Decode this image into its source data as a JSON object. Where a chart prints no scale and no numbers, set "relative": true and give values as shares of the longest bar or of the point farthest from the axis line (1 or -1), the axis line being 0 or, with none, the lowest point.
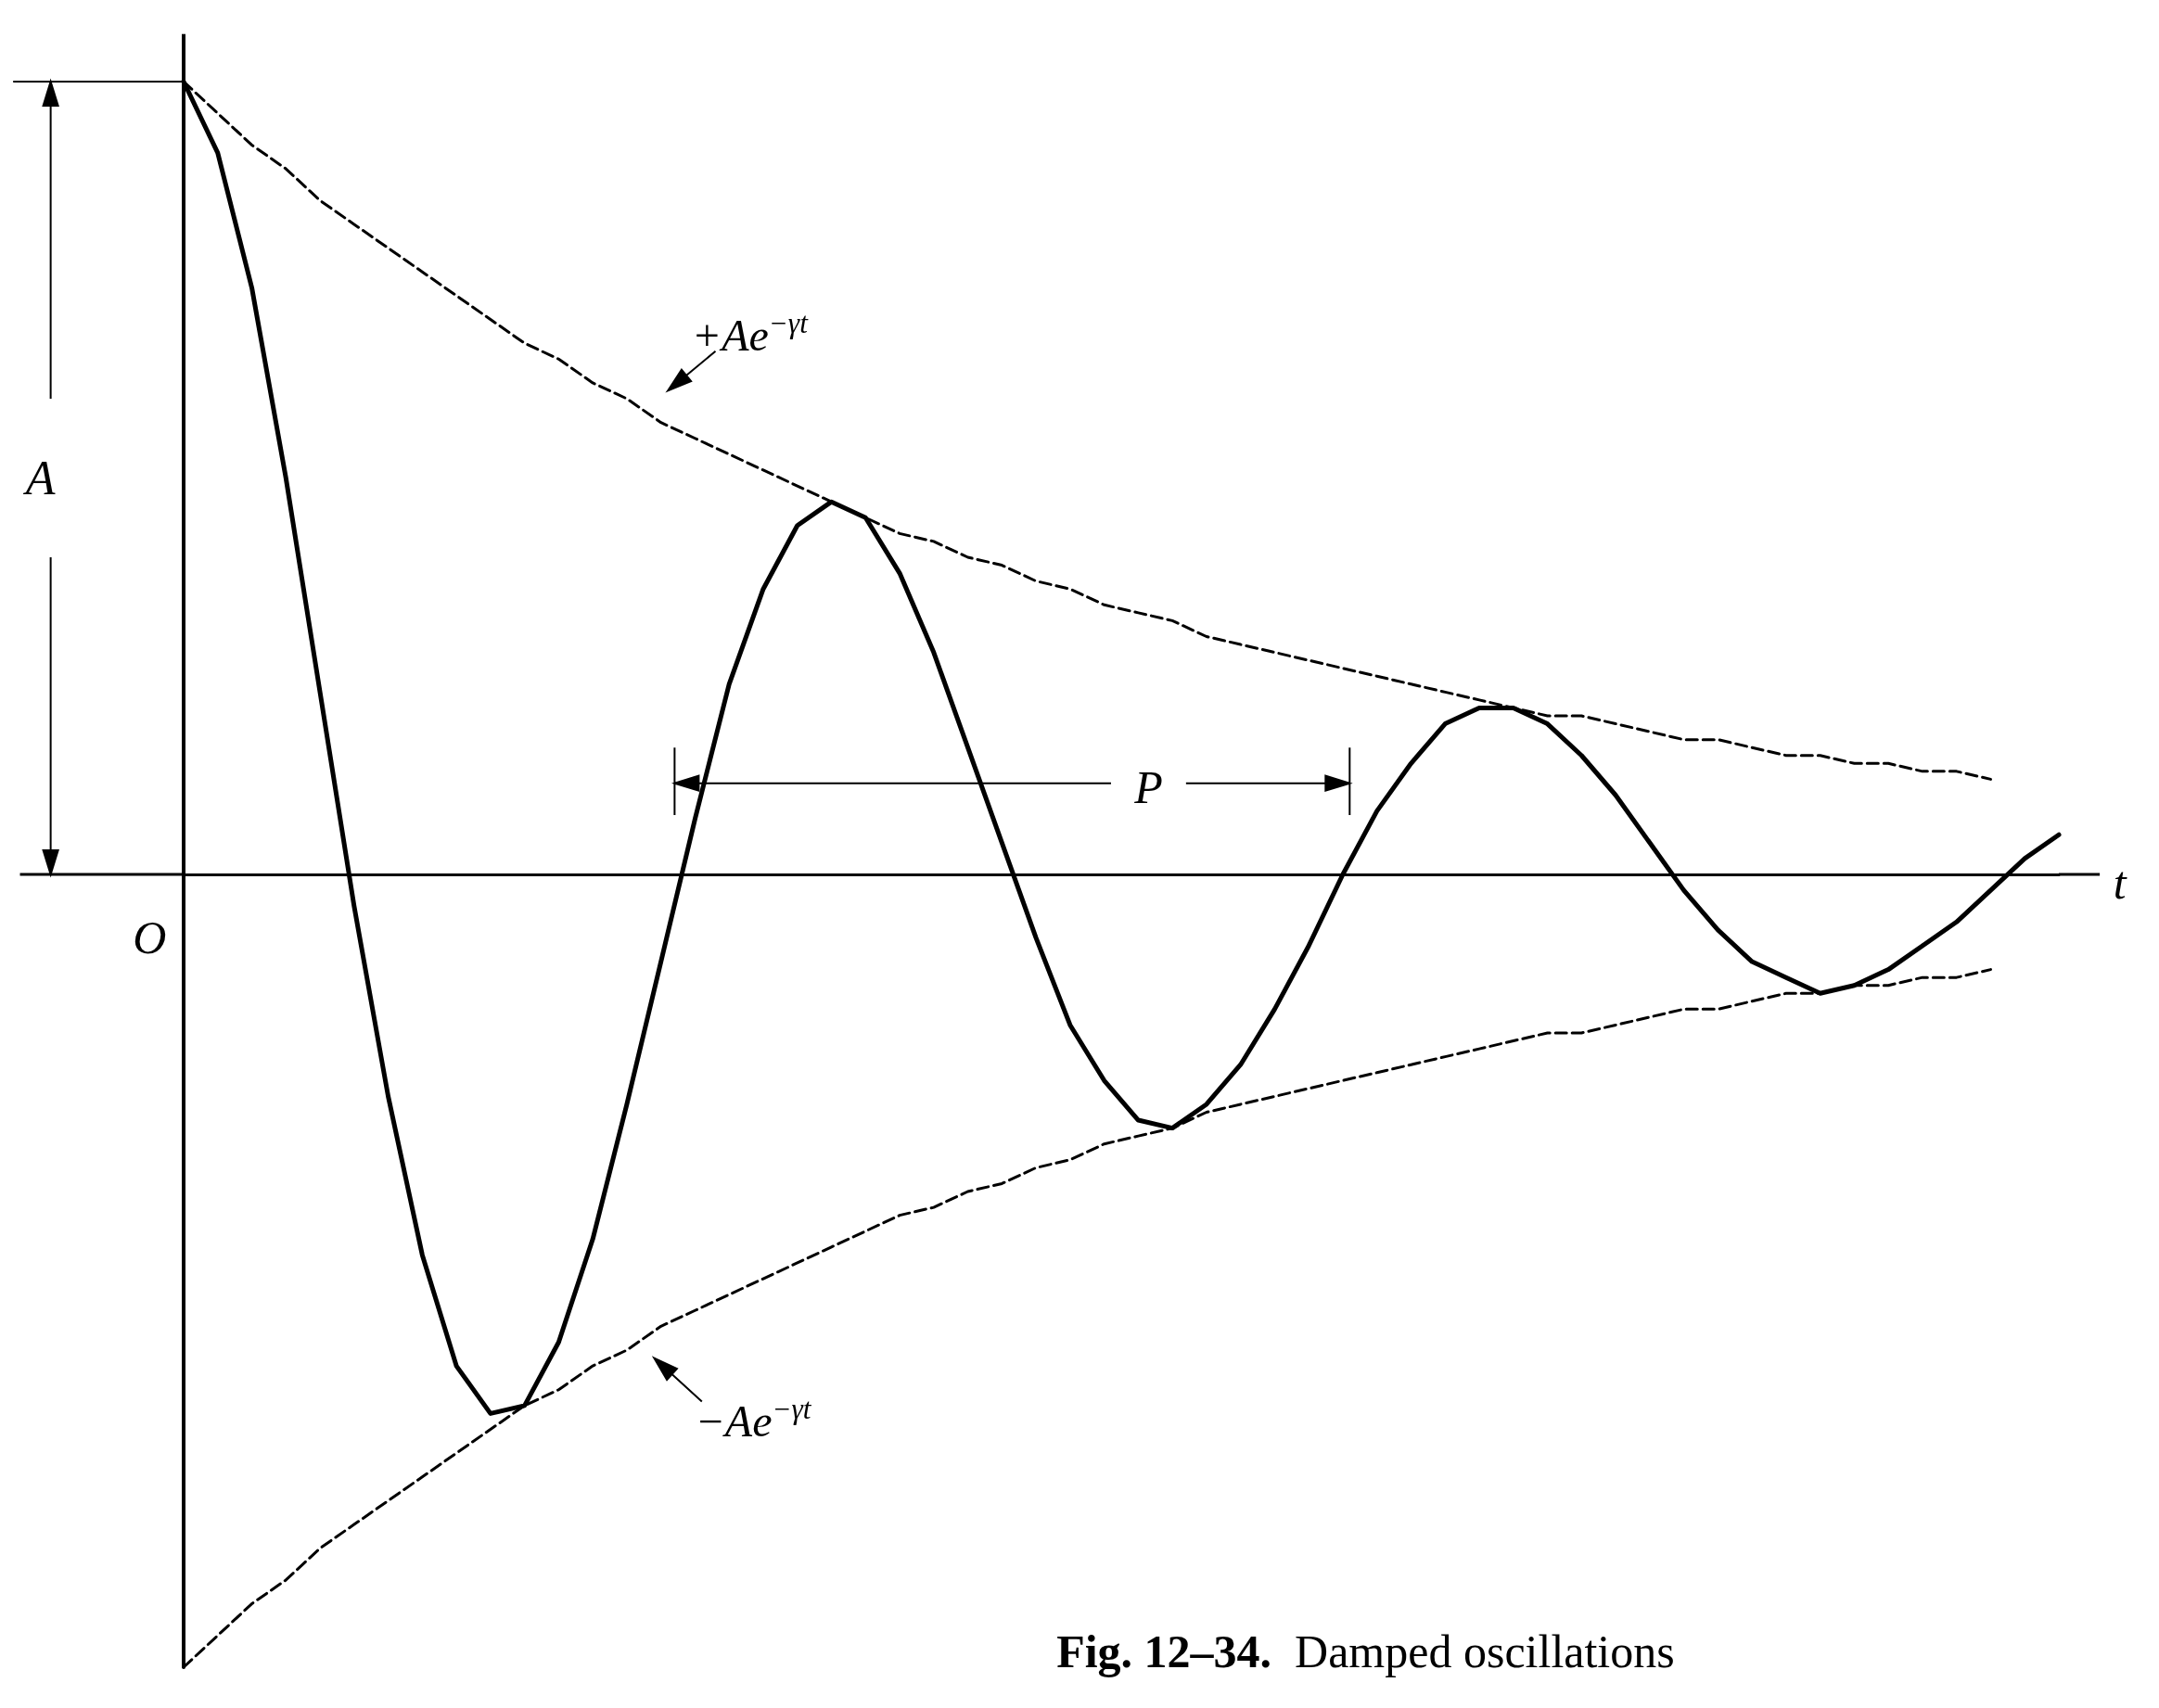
{
  "chart_data": {
    "type": "line",
    "relative": true,
    "categories": [
      null,
      null,
      null,
      null,
      null,
      null,
      null,
      null,
      null,
      null,
      null,
      null,
      null,
      null,
      null,
      null,
      null,
      null,
      null,
      null,
      null,
      null,
      null,
      null,
      null,
      null,
      null,
      null,
      null,
      null,
      null,
      null,
      null,
      null,
      null,
      null,
      null,
      null,
      null,
      null,
      null,
      null,
      null,
      null,
      null,
      null,
      null,
      null,
      null,
      null,
      null,
      null,
      null,
      null,
      null,
      null
    ],
    "series": [
      {
        "color": "#000000",
        "line_style": "solid",
        "values": [
          1.0,
          0.91,
          0.74,
          0.5,
          0.23,
          -0.04,
          -0.28,
          -0.48,
          -0.62,
          -0.68,
          -0.67,
          -0.59,
          -0.46,
          -0.29,
          -0.11,
          0.07,
          0.24,
          0.36,
          0.44,
          0.47,
          0.45,
          0.38,
          0.28,
          0.16,
          0.04,
          -0.08,
          -0.19,
          -0.26,
          -0.31,
          -0.32,
          -0.29,
          -0.24,
          -0.17,
          -0.09,
          0.0,
          0.08,
          0.14,
          0.19,
          0.21,
          0.21,
          0.19,
          0.15,
          0.1,
          0.04,
          -0.02,
          -0.07,
          -0.11,
          -0.13,
          -0.15,
          -0.14,
          -0.12,
          -0.09,
          -0.06,
          -0.02,
          0.02,
          0.05
        ]
      },
      {
        "color": "#000000",
        "line_style": "dashed",
        "values": [
          1,
          0.96,
          0.92,
          0.89,
          0.85,
          0.82,
          0.79,
          0.76,
          0.73,
          0.7,
          0.67,
          0.65,
          0.62,
          0.6,
          0.57,
          0.55,
          0.53,
          0.51,
          0.49,
          0.47,
          0.45,
          0.43,
          0.42,
          0.4,
          0.39,
          0.37,
          0.36,
          0.34,
          0.33,
          0.32,
          0.3,
          0.29,
          0.28,
          0.27,
          0.26,
          0.25,
          0.24,
          0.23,
          0.22,
          0.21,
          0.2,
          0.2,
          0.19,
          0.18,
          0.17,
          0.17,
          0.16,
          0.15,
          0.15,
          0.14,
          0.14,
          0.13,
          0.13,
          0.12,
          null,
          null
        ]
      },
      {
        "color": "#000000",
        "line_style": "dashed",
        "values": [
          -1,
          -0.96,
          -0.92,
          -0.89,
          -0.85,
          -0.82,
          -0.79,
          -0.76,
          -0.73,
          -0.7,
          -0.67,
          -0.65,
          -0.62,
          -0.6,
          -0.57,
          -0.55,
          -0.53,
          -0.51,
          -0.49,
          -0.47,
          -0.45,
          -0.43,
          -0.42,
          -0.4,
          -0.39,
          -0.37,
          -0.36,
          -0.34,
          -0.33,
          -0.32,
          -0.3,
          -0.29,
          -0.28,
          -0.27,
          -0.26,
          -0.25,
          -0.24,
          -0.23,
          -0.22,
          -0.21,
          -0.2,
          -0.2,
          -0.19,
          -0.18,
          -0.17,
          -0.17,
          -0.16,
          -0.15,
          -0.15,
          -0.14,
          -0.14,
          -0.13,
          -0.13,
          -0.12,
          null,
          null
        ]
      }
    ],
    "annotations": [
      "A",
      "O",
      "P",
      "t",
      "+Ae$^{−γt}$",
      "−Ae$^{−γt}$",
      "Fig. 12–34. Damped oscillations"
    ]
  }
}
